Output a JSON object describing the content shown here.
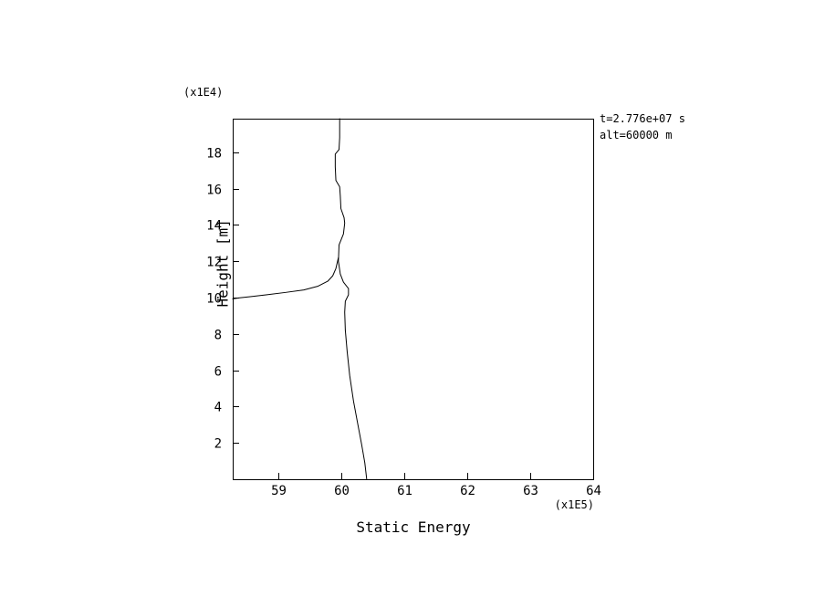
{
  "page": {
    "background": "#ffffff",
    "foreground": "#000000"
  },
  "annotations": {
    "time": "t=2.776e+07 s",
    "alt": "alt=60000 m"
  },
  "chart_data": {
    "type": "line",
    "title": "",
    "xlabel": "Static Energy",
    "ylabel": "Height [m]",
    "x_scale_label": "(x1E5)",
    "y_scale_label": "(x1E4)",
    "xlim": [
      58.27,
      64.0
    ],
    "ylim": [
      0.0,
      19.85
    ],
    "x_ticks": [
      59,
      60,
      61,
      62,
      63,
      64
    ],
    "y_ticks": [
      2,
      4,
      6,
      8,
      10,
      12,
      14,
      16,
      18
    ],
    "grid": false,
    "legend": "none",
    "line_color": "#000000",
    "x_units": "1E5",
    "y_units": "1E4",
    "series": [
      {
        "name": "static-energy-profile",
        "points": [
          [
            60.4,
            0.0
          ],
          [
            60.37,
            0.9
          ],
          [
            60.32,
            1.9
          ],
          [
            60.26,
            3.0
          ],
          [
            60.19,
            4.3
          ],
          [
            60.13,
            5.7
          ],
          [
            60.09,
            7.0
          ],
          [
            60.06,
            8.2
          ],
          [
            60.05,
            9.2
          ],
          [
            60.06,
            9.8
          ],
          [
            60.11,
            10.15
          ],
          [
            60.11,
            10.5
          ],
          [
            60.03,
            10.85
          ],
          [
            59.98,
            11.3
          ],
          [
            59.95,
            12.0
          ],
          [
            59.96,
            12.9
          ],
          [
            60.03,
            13.5
          ],
          [
            60.05,
            14.1
          ],
          [
            60.04,
            14.4
          ],
          [
            59.99,
            14.9
          ],
          [
            59.98,
            15.6
          ],
          [
            59.97,
            16.1
          ],
          [
            59.91,
            16.45
          ],
          [
            59.9,
            17.2
          ],
          [
            59.9,
            17.9
          ],
          [
            59.96,
            18.15
          ],
          [
            59.97,
            18.8
          ],
          [
            59.97,
            19.85
          ]
        ]
      },
      {
        "name": "left-asymptotic-branch",
        "points": [
          [
            59.95,
            12.2
          ],
          [
            59.91,
            11.6
          ],
          [
            59.86,
            11.2
          ],
          [
            59.78,
            10.9
          ],
          [
            59.62,
            10.62
          ],
          [
            59.4,
            10.42
          ],
          [
            59.1,
            10.28
          ],
          [
            58.8,
            10.15
          ],
          [
            58.55,
            10.05
          ],
          [
            58.38,
            9.99
          ],
          [
            58.27,
            9.93
          ]
        ]
      }
    ]
  }
}
